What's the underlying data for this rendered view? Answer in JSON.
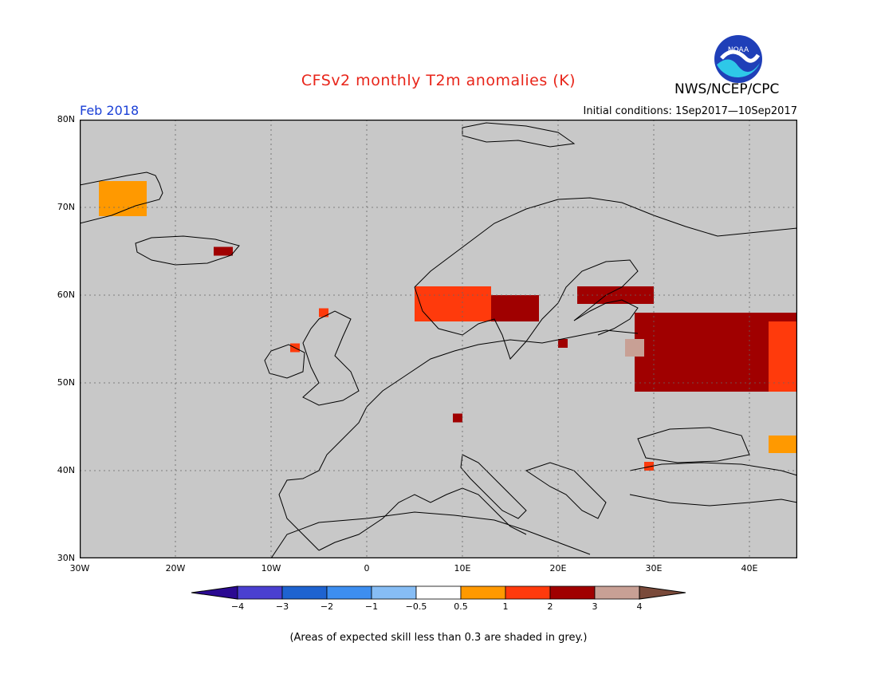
{
  "header": {
    "title": "CFSv2 monthly T2m anomalies (K)",
    "org": "NWS/NCEP/CPC",
    "month": "Feb 2018",
    "initial_conditions": "Initial conditions: 1Sep2017—10Sep2017",
    "logo_text": "NOAA"
  },
  "map": {
    "lat_labels": [
      "80N",
      "70N",
      "60N",
      "50N",
      "40N",
      "30N"
    ],
    "lon_labels": [
      "30W",
      "20W",
      "10W",
      "0",
      "10E",
      "20E",
      "30E",
      "40E"
    ],
    "lon_range": [
      -30,
      45
    ],
    "lat_range": [
      30,
      80
    ],
    "background_color": "#c8c8c8",
    "anomaly_patches": [
      {
        "region": "greenland-east",
        "lon": [
          -28,
          -23
        ],
        "lat": [
          69,
          73
        ],
        "value": 0.75
      },
      {
        "region": "iceland-east",
        "lon": [
          -16,
          -14
        ],
        "lat": [
          64.5,
          65.5
        ],
        "value": 2.5
      },
      {
        "region": "scotland",
        "lon": [
          -5,
          -4
        ],
        "lat": [
          57.5,
          58.5
        ],
        "value": 1.5
      },
      {
        "region": "ireland",
        "lon": [
          -8,
          -7
        ],
        "lat": [
          53.5,
          54.5
        ],
        "value": 1.5
      },
      {
        "region": "norway-south",
        "lon": [
          5,
          13
        ],
        "lat": [
          57,
          61
        ],
        "value": 1.5
      },
      {
        "region": "sweden-south",
        "lon": [
          13,
          18
        ],
        "lat": [
          57,
          60
        ],
        "value": 2.5
      },
      {
        "region": "finland-gulf",
        "lon": [
          22,
          30
        ],
        "lat": [
          59,
          61
        ],
        "value": 2.5
      },
      {
        "region": "poland",
        "lon": [
          20,
          21
        ],
        "lat": [
          54,
          55
        ],
        "value": 2.5
      },
      {
        "region": "alps",
        "lon": [
          9,
          10
        ],
        "lat": [
          45.5,
          46.5
        ],
        "value": 2.5
      },
      {
        "region": "western-russia",
        "lon": [
          28,
          45
        ],
        "lat": [
          49,
          58
        ],
        "value": 2.5
      },
      {
        "region": "russia-east-edge",
        "lon": [
          42,
          45
        ],
        "lat": [
          49,
          57
        ],
        "value": 1.5
      },
      {
        "region": "belarus",
        "lon": [
          27,
          29
        ],
        "lat": [
          53,
          55
        ],
        "value": 3.5
      },
      {
        "region": "turkey-nw",
        "lon": [
          29,
          30
        ],
        "lat": [
          40,
          41
        ],
        "value": 1.5
      },
      {
        "region": "caucasus",
        "lon": [
          42,
          45
        ],
        "lat": [
          42,
          44
        ],
        "value": 0.75
      }
    ]
  },
  "colorbar": {
    "labels": [
      "−4",
      "−3",
      "−2",
      "−1",
      "−0.5",
      "0.5",
      "1",
      "2",
      "3",
      "4"
    ],
    "colors": [
      "#2b0a92",
      "#4a3fd0",
      "#1e63d0",
      "#3d8ef0",
      "#86bdf5",
      "#ffffff",
      "#ff9900",
      "#ff3a0c",
      "#a00000",
      "#c8a095",
      "#7a4a3a"
    ]
  },
  "footer": {
    "note": "(Areas of expected skill less than 0.3 are shaded in grey.)"
  }
}
